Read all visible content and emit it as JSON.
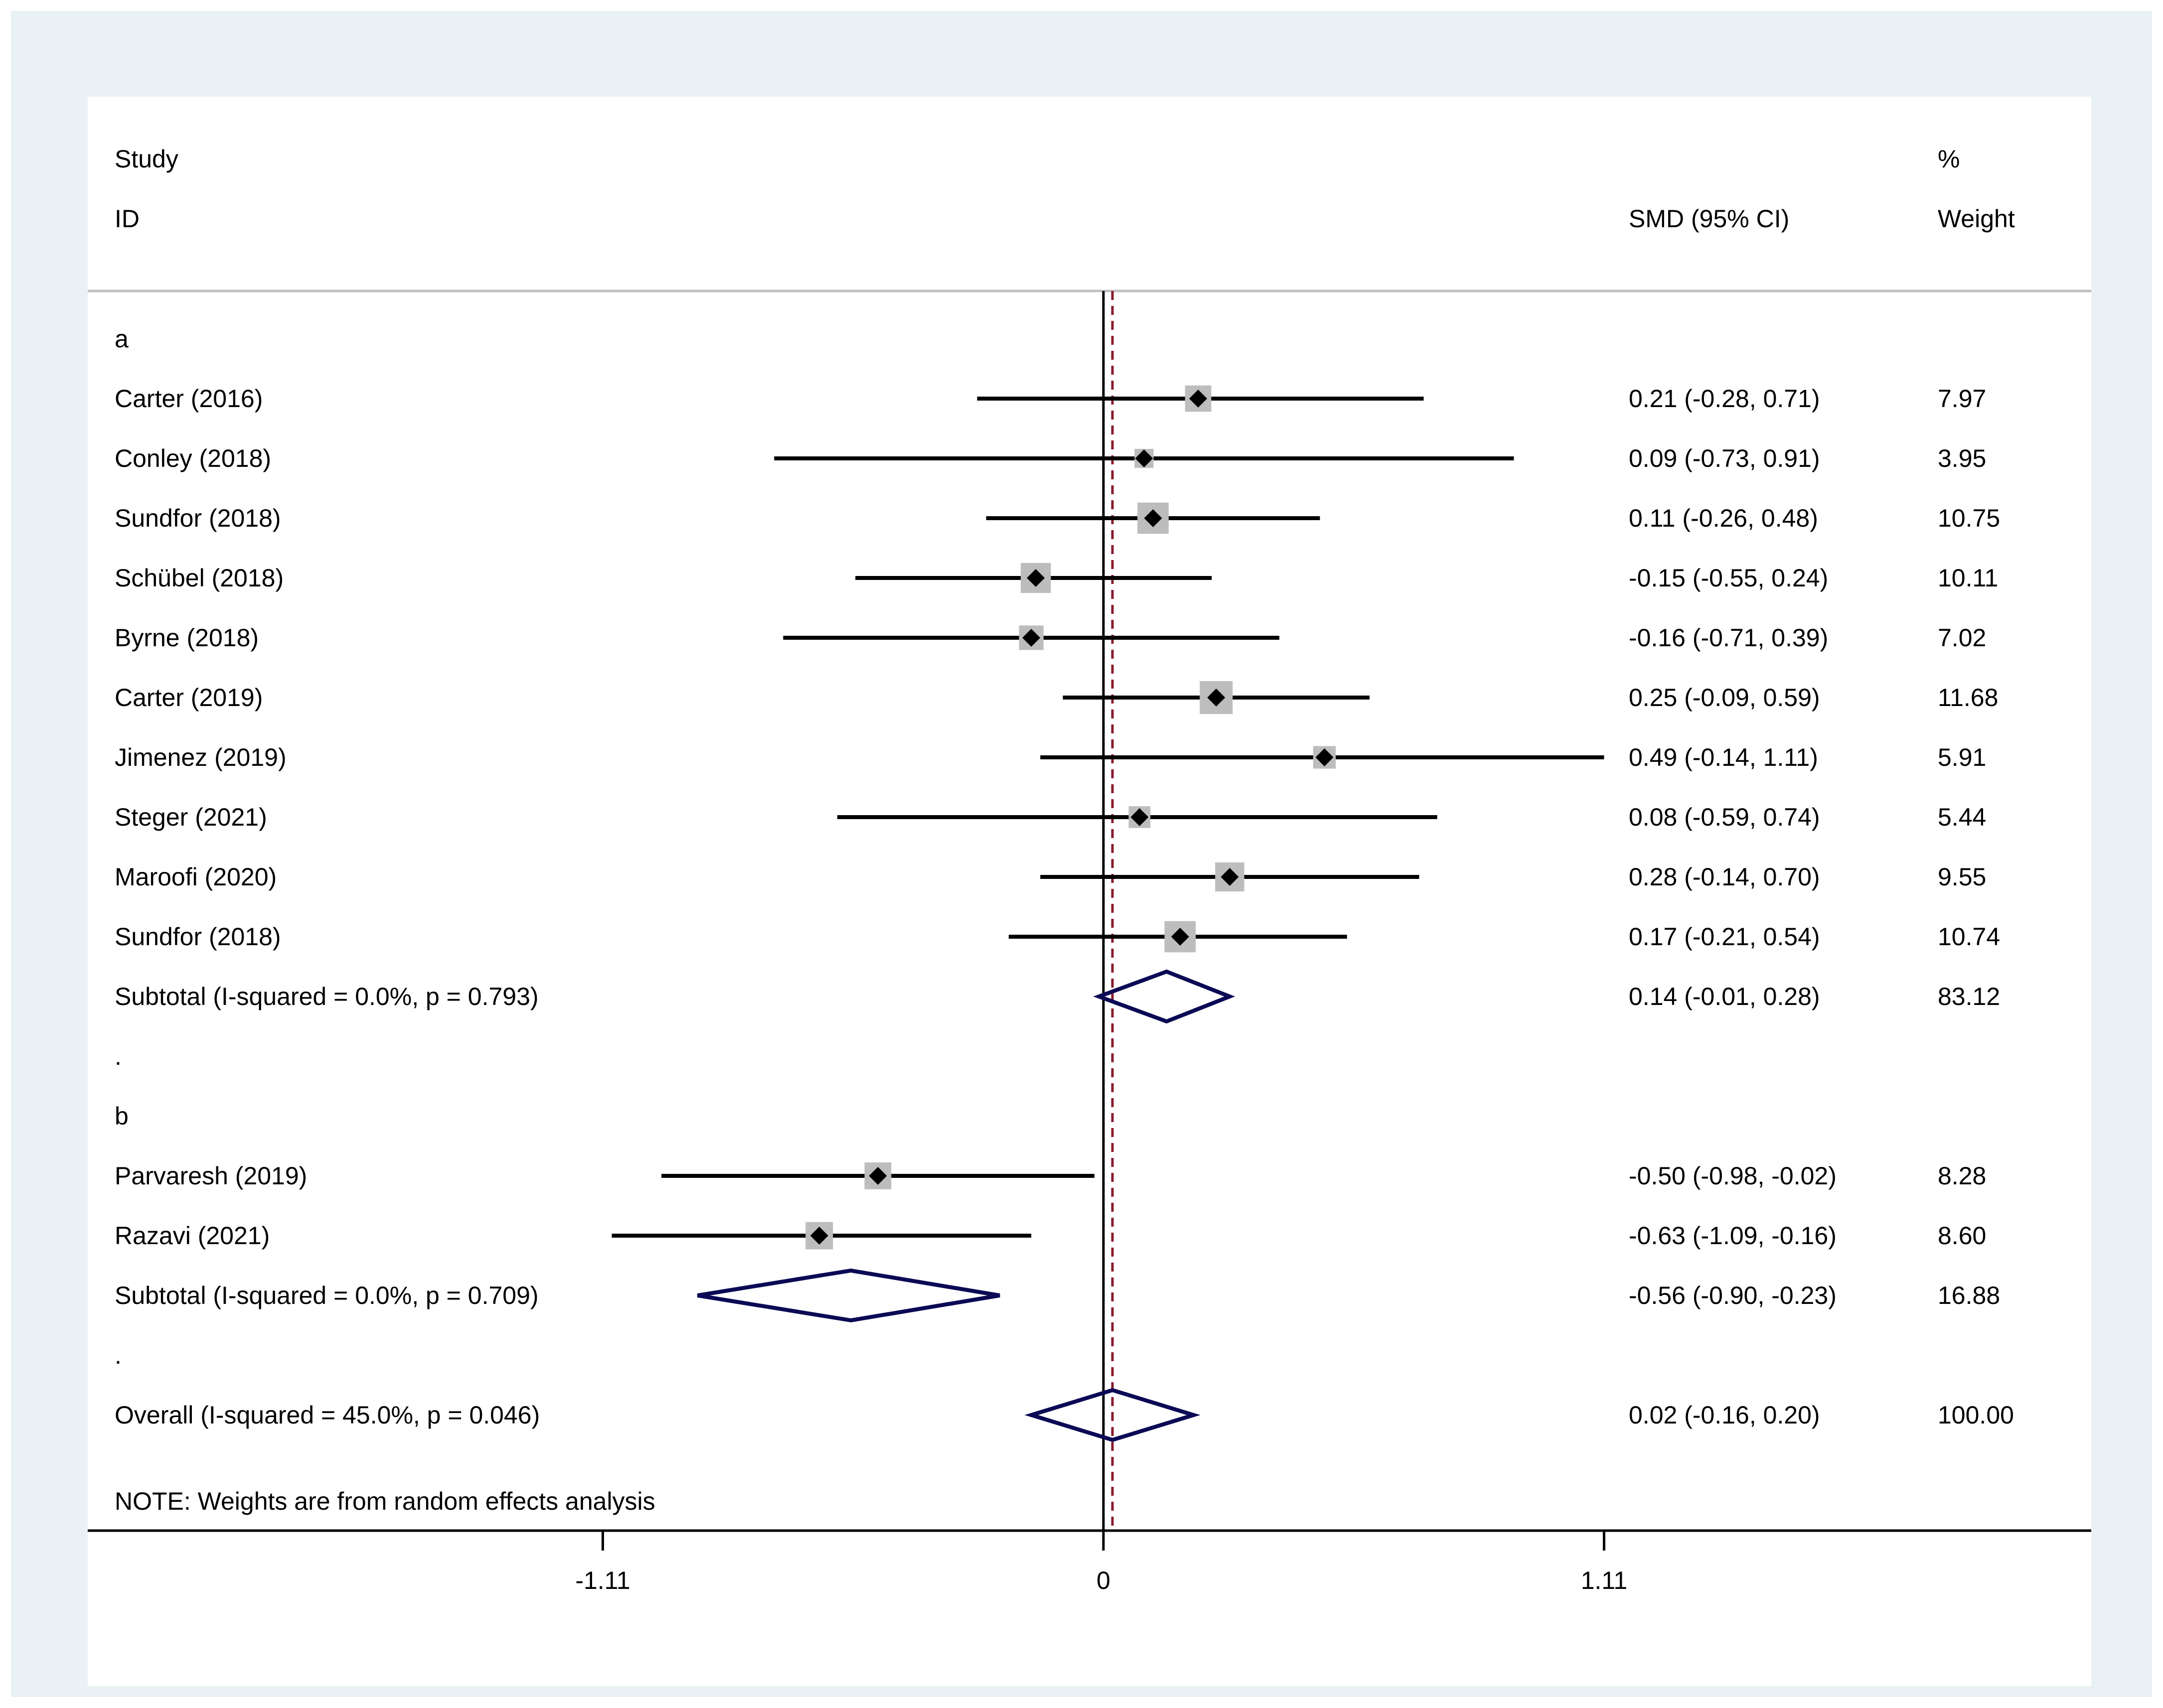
{
  "colors": {
    "outer_background": "#e9f1f4",
    "plot_background": "#ffffff",
    "ci_line": "#000000",
    "weight_box": "#bdbdbd",
    "point_estimate": "#000000",
    "diamond": "#0a0a55",
    "overall_line": "#8b1a2b",
    "null_line": "#000000",
    "header_rule": "#bfbfbf"
  },
  "chart_data": {
    "type": "forest",
    "measure": "SMD",
    "header": {
      "study_line1": "Study",
      "study_line2": "ID",
      "effect_label": "SMD (95% CI)",
      "weight_line1": "%",
      "weight_line2": "Weight"
    },
    "axis": {
      "ticks": [
        -1.11,
        0,
        1.11
      ],
      "tick_labels": [
        "-1.11",
        "0",
        "1.11"
      ],
      "range": [
        -2.25,
        2.2
      ],
      "null_value": 0
    },
    "overall_line_value": 0.02,
    "rows": [
      {
        "kind": "group",
        "label": "a"
      },
      {
        "kind": "study",
        "label": "Carter  (2016)",
        "est": 0.21,
        "lo": -0.28,
        "hi": 0.71,
        "ci_text": "0.21 (-0.28, 0.71)",
        "weight": 7.97,
        "weight_text": "7.97"
      },
      {
        "kind": "study",
        "label": "Conley  (2018)",
        "est": 0.09,
        "lo": -0.73,
        "hi": 0.91,
        "ci_text": "0.09 (-0.73, 0.91)",
        "weight": 3.95,
        "weight_text": "3.95"
      },
      {
        "kind": "study",
        "label": "Sundfor  (2018)",
        "est": 0.11,
        "lo": -0.26,
        "hi": 0.48,
        "ci_text": "0.11 (-0.26, 0.48)",
        "weight": 10.75,
        "weight_text": "10.75"
      },
      {
        "kind": "study",
        "label": "Schübel  (2018)",
        "est": -0.15,
        "lo": -0.55,
        "hi": 0.24,
        "ci_text": "-0.15 (-0.55, 0.24)",
        "weight": 10.11,
        "weight_text": "10.11"
      },
      {
        "kind": "study",
        "label": "Byrne  (2018)",
        "est": -0.16,
        "lo": -0.71,
        "hi": 0.39,
        "ci_text": "-0.16 (-0.71, 0.39)",
        "weight": 7.02,
        "weight_text": "7.02"
      },
      {
        "kind": "study",
        "label": "Carter  (2019)",
        "est": 0.25,
        "lo": -0.09,
        "hi": 0.59,
        "ci_text": "0.25 (-0.09, 0.59)",
        "weight": 11.68,
        "weight_text": "11.68"
      },
      {
        "kind": "study",
        "label": "Jimenez  (2019)",
        "est": 0.49,
        "lo": -0.14,
        "hi": 1.11,
        "ci_text": "0.49 (-0.14, 1.11)",
        "weight": 5.91,
        "weight_text": "5.91"
      },
      {
        "kind": "study",
        "label": "Steger (2021)",
        "est": 0.08,
        "lo": -0.59,
        "hi": 0.74,
        "ci_text": "0.08 (-0.59, 0.74)",
        "weight": 5.44,
        "weight_text": "5.44"
      },
      {
        "kind": "study",
        "label": "Maroofi (2020)",
        "est": 0.28,
        "lo": -0.14,
        "hi": 0.7,
        "ci_text": "0.28 (-0.14, 0.70)",
        "weight": 9.55,
        "weight_text": "9.55"
      },
      {
        "kind": "study",
        "label": "Sundfor  (2018)",
        "est": 0.17,
        "lo": -0.21,
        "hi": 0.54,
        "ci_text": "0.17 (-0.21, 0.54)",
        "weight": 10.74,
        "weight_text": "10.74"
      },
      {
        "kind": "subtotal",
        "label": "Subtotal  (I-squared = 0.0%, p = 0.793)",
        "est": 0.14,
        "lo": -0.01,
        "hi": 0.28,
        "ci_text": "0.14 (-0.01, 0.28)",
        "weight": 83.12,
        "weight_text": "83.12"
      },
      {
        "kind": "spacer",
        "label": "."
      },
      {
        "kind": "group",
        "label": "b"
      },
      {
        "kind": "study",
        "label": "Parvaresh (2019)",
        "est": -0.5,
        "lo": -0.98,
        "hi": -0.02,
        "ci_text": "-0.50 (-0.98, -0.02)",
        "weight": 8.28,
        "weight_text": "8.28"
      },
      {
        "kind": "study",
        "label": "Razavi (2021)",
        "est": -0.63,
        "lo": -1.09,
        "hi": -0.16,
        "ci_text": "-0.63 (-1.09, -0.16)",
        "weight": 8.6,
        "weight_text": "8.60"
      },
      {
        "kind": "subtotal",
        "label": "Subtotal  (I-squared = 0.0%, p = 0.709)",
        "est": -0.56,
        "lo": -0.9,
        "hi": -0.23,
        "ci_text": "-0.56 (-0.90, -0.23)",
        "weight": 16.88,
        "weight_text": "16.88"
      },
      {
        "kind": "spacer",
        "label": "."
      },
      {
        "kind": "overall",
        "label": "Overall  (I-squared = 45.0%, p = 0.046)",
        "est": 0.02,
        "lo": -0.16,
        "hi": 0.2,
        "ci_text": "0.02 (-0.16, 0.20)",
        "weight": 100.0,
        "weight_text": "100.00"
      }
    ],
    "note": "NOTE: Weights are from random effects analysis"
  }
}
